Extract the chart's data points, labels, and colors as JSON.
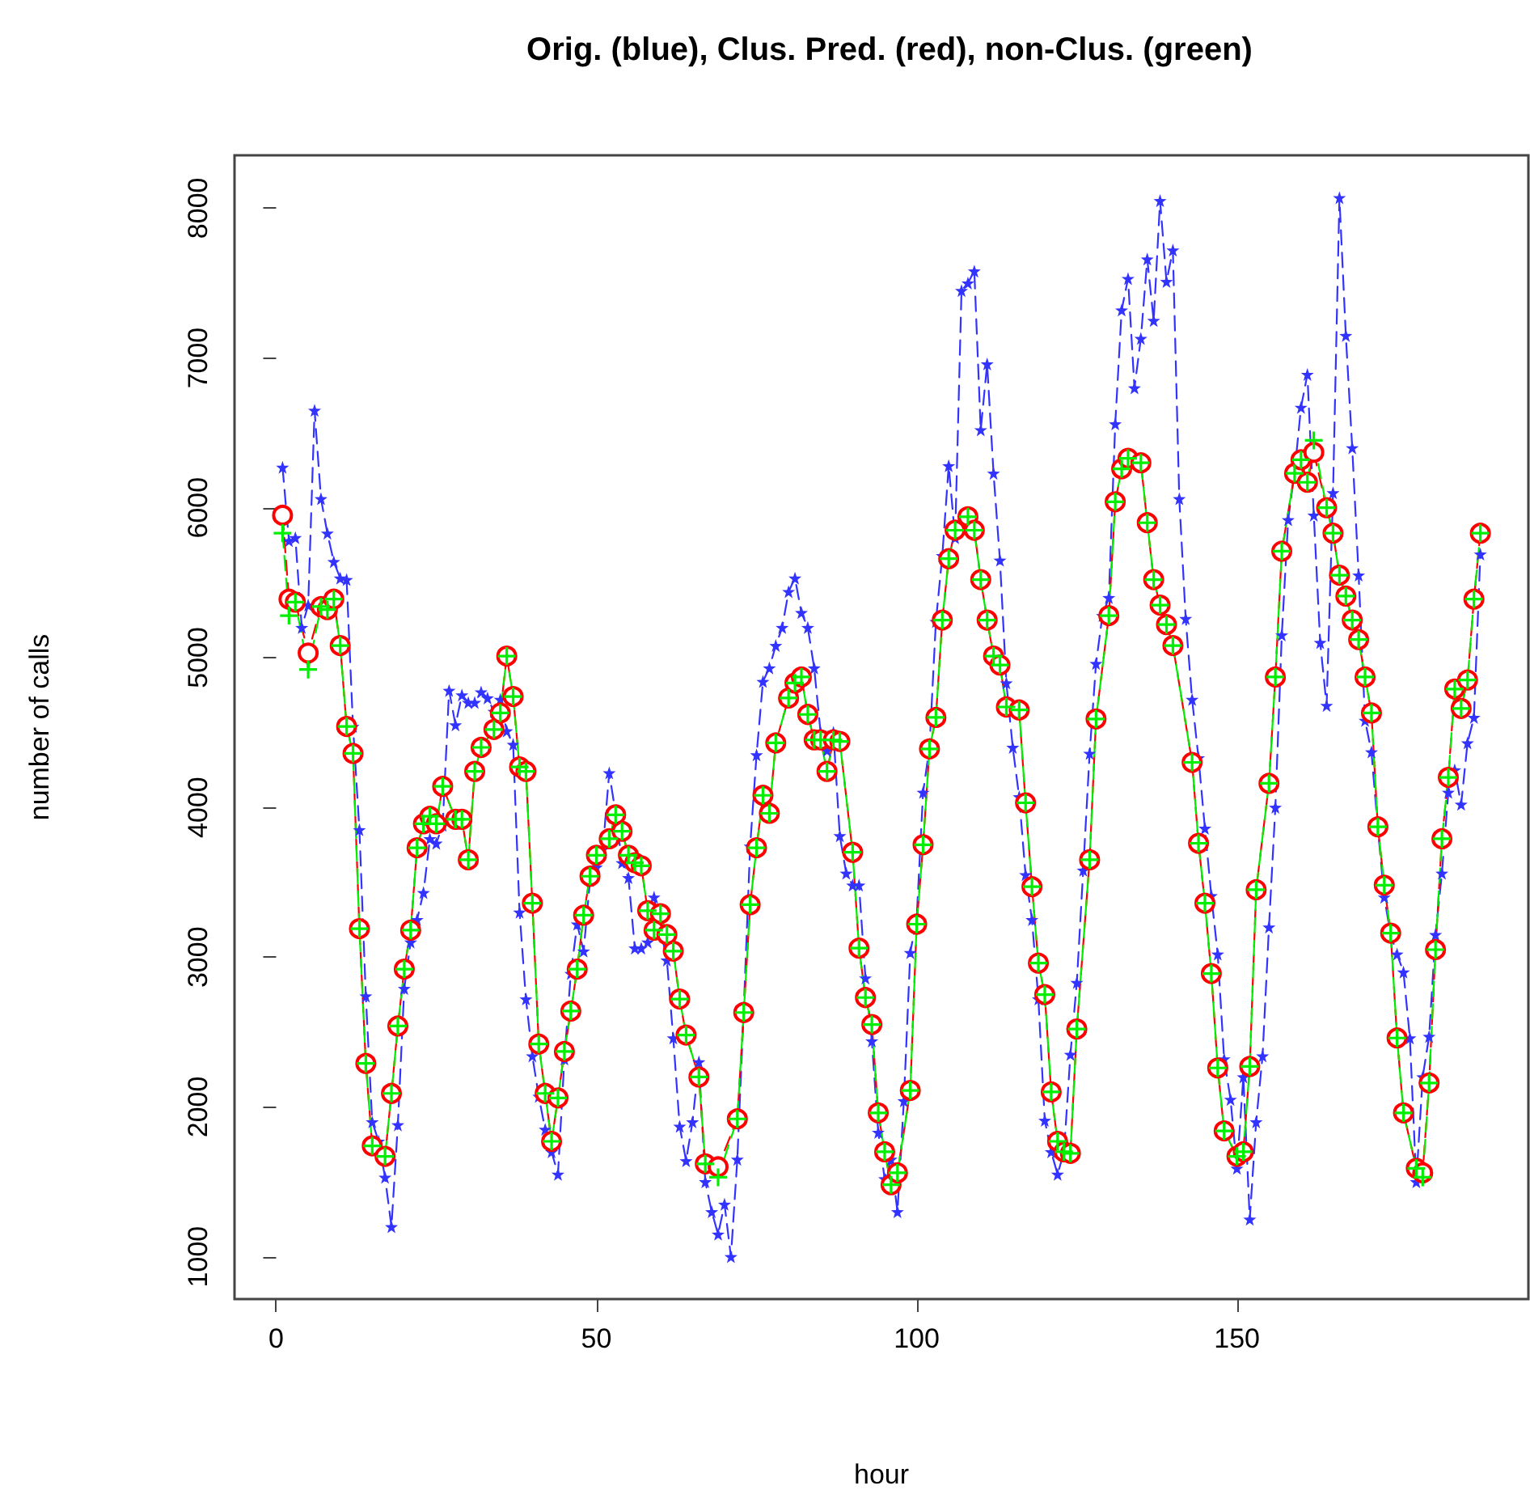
{
  "chart_data": {
    "type": "line",
    "title": "Orig. (blue), Clus. Pred. (red), non-Clus. (green)",
    "xlabel": "hour",
    "ylabel": "number of calls",
    "xlim": [
      -6.5,
      195.5
    ],
    "xticks": [
      0,
      50,
      100,
      150
    ],
    "ylim": [
      717,
      8353
    ],
    "yticks": [
      1000,
      2000,
      3000,
      4000,
      5000,
      6000,
      7000,
      8000
    ],
    "grid": false,
    "series": [
      {
        "color": "#3333ff",
        "marker": "star",
        "line_style": "dashed",
        "x": [
          1,
          2,
          3,
          4,
          5,
          6,
          7,
          8,
          9,
          10,
          11,
          12,
          13,
          14,
          15,
          16,
          17,
          18,
          19,
          20,
          21,
          22,
          23,
          24,
          25,
          26,
          27,
          28,
          29,
          30,
          31,
          32,
          33,
          34,
          35,
          36,
          37,
          38,
          39,
          40,
          41,
          42,
          43,
          44,
          45,
          46,
          47,
          48,
          49,
          50,
          51,
          52,
          53,
          54,
          55,
          56,
          57,
          58,
          59,
          60,
          61,
          62,
          63,
          64,
          65,
          66,
          67,
          68,
          69,
          70,
          71,
          72,
          73,
          74,
          75,
          76,
          77,
          78,
          79,
          80,
          81,
          82,
          83,
          84,
          85,
          86,
          87,
          88,
          89,
          90,
          91,
          92,
          93,
          94,
          95,
          96,
          97,
          98,
          99,
          100,
          101,
          102,
          103,
          104,
          105,
          106,
          107,
          108,
          109,
          110,
          111,
          112,
          113,
          114,
          115,
          116,
          117,
          118,
          119,
          120,
          121,
          122,
          123,
          124,
          125,
          126,
          127,
          128,
          129,
          130,
          131,
          132,
          133,
          134,
          135,
          136,
          137,
          138,
          139,
          140,
          141,
          142,
          143,
          144,
          145,
          146,
          147,
          148,
          149,
          150,
          151,
          152,
          153,
          154,
          155,
          156,
          157,
          158,
          159,
          160,
          161,
          162,
          163,
          164,
          165,
          166,
          167,
          168,
          169,
          170,
          171,
          172,
          173,
          174,
          175,
          176,
          177,
          178,
          179,
          180,
          181,
          182,
          183,
          184,
          185,
          186,
          187,
          188
        ],
        "values": [
          6270,
          5780,
          5800,
          5200,
          5350,
          6650,
          6060,
          5830,
          5640,
          5530,
          5520,
          4540,
          3850,
          2740,
          1900,
          1770,
          1530,
          1200,
          1880,
          2790,
          3100,
          3250,
          3430,
          3790,
          3760,
          3880,
          4780,
          4550,
          4750,
          4700,
          4700,
          4770,
          4730,
          4640,
          4720,
          4510,
          4420,
          3300,
          2720,
          2340,
          2070,
          1850,
          1700,
          1550,
          2320,
          2890,
          3220,
          3040,
          3510,
          3600,
          3720,
          4230,
          3960,
          3630,
          3530,
          3060,
          3060,
          3100,
          3400,
          3190,
          2980,
          2460,
          1870,
          1640,
          1900,
          2300,
          1500,
          1300,
          1150,
          1350,
          1000,
          1650,
          2650,
          3740,
          4350,
          4840,
          4930,
          5080,
          5200,
          5440,
          5530,
          5300,
          5200,
          4930,
          4500,
          4380,
          4500,
          3810,
          3560,
          3480,
          3480,
          2860,
          2440,
          1830,
          1520,
          1650,
          1300,
          2040,
          3030,
          3260,
          4100,
          4400,
          5240,
          5680,
          6280,
          5800,
          7450,
          7500,
          7580,
          6520,
          6960,
          6230,
          5650,
          4830,
          4400,
          4070,
          3550,
          3250,
          2720,
          1910,
          1700,
          1550,
          1700,
          2350,
          2830,
          3580,
          4360,
          4960,
          5280,
          5400,
          6560,
          7320,
          7530,
          6800,
          7130,
          7660,
          7250,
          8050,
          7510,
          7720,
          6060,
          5260,
          4720,
          4330,
          3860,
          3410,
          3020,
          2320,
          2050,
          1590,
          2200,
          1250,
          1900,
          2340,
          3200,
          4000,
          5150,
          5920,
          6240,
          6670,
          6890,
          5950,
          5100,
          4680,
          6100,
          8070,
          7150,
          6400,
          5550,
          4580,
          4370,
          3860,
          3400,
          3150,
          3020,
          2900,
          2460,
          1500,
          2200,
          2470,
          3150,
          3560,
          4100,
          4250,
          4020,
          4430,
          4600,
          5690
        ]
      },
      {
        "color": "#ff0000",
        "marker": "circle",
        "line_style": "dashed",
        "x": [
          1,
          2,
          3,
          5,
          7,
          8,
          9,
          10,
          11,
          12,
          13,
          14,
          15,
          17,
          18,
          19,
          20,
          21,
          22,
          23,
          24,
          25,
          26,
          28,
          29,
          30,
          31,
          32,
          34,
          35,
          36,
          37,
          38,
          39,
          40,
          41,
          42,
          43,
          44,
          45,
          46,
          47,
          48,
          49,
          50,
          52,
          53,
          54,
          55,
          56,
          57,
          58,
          59,
          60,
          61,
          62,
          63,
          64,
          66,
          67,
          69,
          72,
          73,
          74,
          75,
          76,
          77,
          78,
          80,
          81,
          82,
          83,
          84,
          85,
          86,
          87,
          88,
          90,
          91,
          92,
          93,
          94,
          95,
          96,
          97,
          99,
          100,
          101,
          102,
          103,
          104,
          105,
          106,
          108,
          109,
          110,
          111,
          112,
          113,
          114,
          116,
          117,
          118,
          119,
          120,
          121,
          122,
          123,
          124,
          125,
          127,
          128,
          130,
          131,
          132,
          133,
          135,
          136,
          137,
          138,
          139,
          140,
          143,
          144,
          145,
          146,
          147,
          148,
          150,
          151,
          152,
          153,
          155,
          156,
          157,
          159,
          160,
          161,
          162,
          164,
          165,
          166,
          167,
          168,
          169,
          170,
          171,
          172,
          173,
          174,
          175,
          176,
          178,
          179,
          180,
          181,
          182,
          183,
          184,
          185,
          186,
          187,
          188
        ],
        "values": [
          5950,
          5390,
          5370,
          5030,
          5340,
          5320,
          5390,
          5080,
          4540,
          4360,
          3190,
          2290,
          1740,
          1670,
          2090,
          2540,
          2920,
          3180,
          3730,
          3890,
          3940,
          3890,
          4140,
          3920,
          3920,
          3650,
          4240,
          4400,
          4520,
          4630,
          5010,
          4740,
          4270,
          4240,
          3360,
          2420,
          2090,
          1770,
          2060,
          2370,
          2640,
          2920,
          3280,
          3540,
          3680,
          3790,
          3950,
          3840,
          3680,
          3630,
          3610,
          3310,
          3180,
          3290,
          3150,
          3040,
          2720,
          2480,
          2200,
          1620,
          1600,
          1920,
          2630,
          3350,
          3730,
          4080,
          3960,
          4430,
          4730,
          4830,
          4870,
          4620,
          4450,
          4450,
          4240,
          4450,
          4440,
          3700,
          3060,
          2730,
          2550,
          1960,
          1700,
          1480,
          1560,
          2110,
          3220,
          3750,
          4390,
          4600,
          5250,
          5660,
          5850,
          5940,
          5850,
          5520,
          5250,
          5010,
          4950,
          4670,
          4650,
          4030,
          3470,
          2960,
          2750,
          2100,
          1770,
          1700,
          1690,
          2520,
          3650,
          4590,
          5280,
          6040,
          6260,
          6330,
          6300,
          5900,
          5520,
          5350,
          5220,
          5080,
          4300,
          3760,
          3360,
          2890,
          2260,
          1840,
          1670,
          1700,
          2270,
          3450,
          4160,
          4870,
          5710,
          6230,
          6320,
          6170,
          6370,
          6000,
          5830,
          5550,
          5410,
          5250,
          5120,
          4870,
          4630,
          3870,
          3480,
          3160,
          2460,
          1960,
          1590,
          1560,
          2160,
          3050,
          3790,
          4200,
          4790,
          4660,
          4850,
          5390,
          5830
        ]
      },
      {
        "color": "#00ee00",
        "marker": "cross",
        "line_style": "dashed",
        "x": [
          1,
          2,
          3,
          5,
          7,
          8,
          9,
          10,
          11,
          12,
          13,
          14,
          15,
          17,
          18,
          19,
          20,
          21,
          22,
          23,
          24,
          25,
          26,
          28,
          29,
          30,
          31,
          32,
          34,
          35,
          36,
          37,
          38,
          39,
          40,
          41,
          42,
          43,
          44,
          45,
          46,
          47,
          48,
          49,
          50,
          52,
          53,
          54,
          55,
          56,
          57,
          58,
          59,
          60,
          61,
          62,
          63,
          64,
          66,
          67,
          69,
          72,
          73,
          74,
          75,
          76,
          77,
          78,
          80,
          81,
          82,
          83,
          84,
          85,
          86,
          87,
          88,
          90,
          91,
          92,
          93,
          94,
          95,
          96,
          97,
          99,
          100,
          101,
          102,
          103,
          104,
          105,
          106,
          108,
          109,
          110,
          111,
          112,
          113,
          114,
          116,
          117,
          118,
          119,
          120,
          121,
          122,
          123,
          124,
          125,
          127,
          128,
          130,
          131,
          132,
          133,
          135,
          136,
          137,
          138,
          139,
          140,
          143,
          144,
          145,
          146,
          147,
          148,
          150,
          151,
          152,
          153,
          155,
          156,
          157,
          159,
          160,
          161,
          162,
          164,
          165,
          166,
          167,
          168,
          169,
          170,
          171,
          172,
          173,
          174,
          175,
          176,
          178,
          179,
          180,
          181,
          182,
          183,
          184,
          185,
          186,
          187,
          188
        ],
        "values": [
          5830,
          5280,
          5370,
          4920,
          5340,
          5320,
          5390,
          5080,
          4540,
          4360,
          3190,
          2290,
          1740,
          1670,
          2090,
          2540,
          2920,
          3180,
          3730,
          3890,
          3940,
          3890,
          4140,
          3920,
          3920,
          3650,
          4240,
          4400,
          4520,
          4630,
          5010,
          4740,
          4270,
          4240,
          3360,
          2420,
          2090,
          1770,
          2060,
          2370,
          2640,
          2920,
          3280,
          3540,
          3680,
          3790,
          3950,
          3840,
          3680,
          3630,
          3610,
          3310,
          3180,
          3290,
          3150,
          3040,
          2720,
          2480,
          2200,
          1620,
          1530,
          1920,
          2630,
          3350,
          3730,
          4080,
          3960,
          4430,
          4730,
          4830,
          4870,
          4620,
          4450,
          4450,
          4240,
          4450,
          4440,
          3700,
          3060,
          2730,
          2550,
          1960,
          1700,
          1480,
          1560,
          2110,
          3220,
          3750,
          4390,
          4600,
          5250,
          5660,
          5850,
          5940,
          5850,
          5520,
          5250,
          5010,
          4950,
          4670,
          4650,
          4030,
          3470,
          2960,
          2750,
          2100,
          1770,
          1700,
          1690,
          2520,
          3650,
          4590,
          5280,
          6040,
          6260,
          6330,
          6300,
          5900,
          5520,
          5350,
          5220,
          5080,
          4300,
          3760,
          3360,
          2890,
          2260,
          1840,
          1670,
          1700,
          2270,
          3450,
          4160,
          4870,
          5710,
          6230,
          6320,
          6170,
          6450,
          6000,
          5830,
          5550,
          5410,
          5250,
          5120,
          4870,
          4630,
          3870,
          3480,
          3160,
          2460,
          1960,
          1590,
          1530,
          2160,
          3050,
          3790,
          4200,
          4790,
          4660,
          4850,
          5390,
          5830
        ]
      }
    ]
  }
}
